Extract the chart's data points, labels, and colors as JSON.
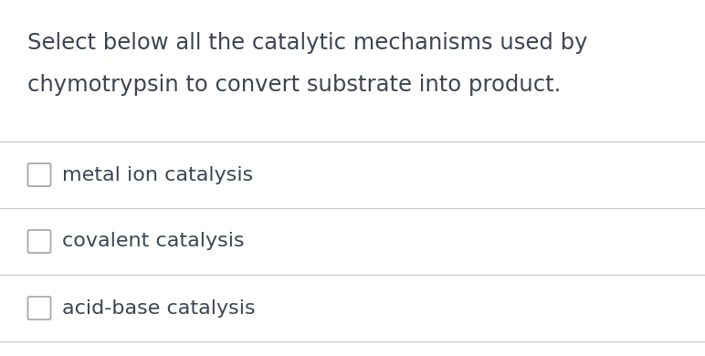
{
  "question_line1": "Select below all the catalytic mechanisms used by",
  "question_line2": "chymotrypsin to convert substrate into product.",
  "options": [
    "metal ion catalysis",
    "covalent catalysis",
    "acid-base catalysis"
  ],
  "bg_color": "#ffffff",
  "text_color": "#3d4554",
  "divider_color": "#c8c8c8",
  "checkbox_edge_color": "#aaaaaa",
  "question_fontsize": 17.5,
  "option_fontsize": 16.0
}
